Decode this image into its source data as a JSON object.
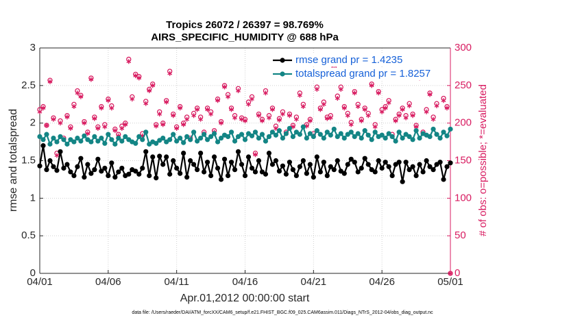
{
  "chart_data": {
    "type": "line",
    "title": "Tropics 26072 / 26397 = 98.769%",
    "subtitle": "AIRS_SPECIFIC_HUMIDITY @ 688 hPa",
    "xlabel": "Apr.01,2012 00:00:00 start",
    "ylabel": "rmse and totalspread",
    "y2label": "# of obs: o=possible; *=evaluated",
    "footnote": "data file: /Users/raeder/DAI/ATM_forcXX/CAM6_setup/f.e21.FHIST_BGC.f09_025.CAM6assim.011/Diags_NTrS_2012-04/obs_diag_output.nc",
    "legend": "northeast",
    "grid": true,
    "xlim": [
      0,
      30
    ],
    "xticks": [
      {
        "value": 0,
        "label": "04/01"
      },
      {
        "value": 5,
        "label": "04/06"
      },
      {
        "value": 10,
        "label": "04/11"
      },
      {
        "value": 15,
        "label": "04/16"
      },
      {
        "value": 20,
        "label": "04/21"
      },
      {
        "value": 25,
        "label": "04/26"
      },
      {
        "value": 30,
        "label": "05/01"
      }
    ],
    "ylim": [
      0,
      3
    ],
    "yticks": [
      0,
      0.5,
      1,
      1.5,
      2,
      2.5,
      3
    ],
    "y2lim": [
      0,
      300
    ],
    "y2ticks": [
      0,
      50,
      100,
      150,
      200,
      250,
      300
    ],
    "y2color": "#d81b60",
    "x": [
      0,
      0.25,
      0.5,
      0.75,
      1,
      1.25,
      1.5,
      1.75,
      2,
      2.25,
      2.5,
      2.75,
      3,
      3.25,
      3.5,
      3.75,
      4,
      4.25,
      4.5,
      4.75,
      5,
      5.25,
      5.5,
      5.75,
      6,
      6.25,
      6.5,
      6.75,
      7,
      7.25,
      7.5,
      7.75,
      8,
      8.25,
      8.5,
      8.75,
      9,
      9.25,
      9.5,
      9.75,
      10,
      10.25,
      10.5,
      10.75,
      11,
      11.25,
      11.5,
      11.75,
      12,
      12.25,
      12.5,
      12.75,
      13,
      13.25,
      13.5,
      13.75,
      14,
      14.25,
      14.5,
      14.75,
      15,
      15.25,
      15.5,
      15.75,
      16,
      16.25,
      16.5,
      16.75,
      17,
      17.25,
      17.5,
      17.75,
      18,
      18.25,
      18.5,
      18.75,
      19,
      19.25,
      19.5,
      19.75,
      20,
      20.25,
      20.5,
      20.75,
      21,
      21.25,
      21.5,
      21.75,
      22,
      22.25,
      22.5,
      22.75,
      23,
      23.25,
      23.5,
      23.75,
      24,
      24.25,
      24.5,
      24.75,
      25,
      25.25,
      25.5,
      25.75,
      26,
      26.25,
      26.5,
      26.75,
      27,
      27.25,
      27.5,
      27.75,
      28,
      28.25,
      28.5,
      28.75,
      29,
      29.25,
      29.5,
      29.75,
      30
    ],
    "series": [
      {
        "name": "rmse grand pr = 1.4235",
        "color": "#000000",
        "marker": "dot",
        "values": [
          1.43,
          1.7,
          1.38,
          1.5,
          1.42,
          1.37,
          1.62,
          1.4,
          1.45,
          1.35,
          1.3,
          1.42,
          1.53,
          1.28,
          1.45,
          1.33,
          1.38,
          1.52,
          1.36,
          1.4,
          1.3,
          1.47,
          1.28,
          1.35,
          1.4,
          1.3,
          1.32,
          1.38,
          1.36,
          1.32,
          1.4,
          1.62,
          1.3,
          1.55,
          1.27,
          1.56,
          1.45,
          1.55,
          1.32,
          1.5,
          1.4,
          1.33,
          1.6,
          1.28,
          1.5,
          1.45,
          1.38,
          1.6,
          1.35,
          1.48,
          1.3,
          1.55,
          1.4,
          1.25,
          1.52,
          1.3,
          1.48,
          1.38,
          1.62,
          1.45,
          1.3,
          1.55,
          1.4,
          1.35,
          1.5,
          1.35,
          1.32,
          1.6,
          1.45,
          1.5,
          1.36,
          1.43,
          1.32,
          1.48,
          1.38,
          1.3,
          1.42,
          1.5,
          1.33,
          1.45,
          1.28,
          1.55,
          1.35,
          1.48,
          1.3,
          1.42,
          1.38,
          1.5,
          1.36,
          1.33,
          1.45,
          1.52,
          1.48,
          1.35,
          1.4,
          1.53,
          1.45,
          1.38,
          1.35,
          1.5,
          1.4,
          1.48,
          1.42,
          1.3,
          1.45,
          1.48,
          1.22,
          1.48,
          1.38,
          1.42,
          1.3,
          1.45,
          1.35,
          1.5,
          1.42,
          1.38,
          1.45,
          1.48,
          1.25,
          1.42,
          1.47
        ]
      },
      {
        "name": "totalspread grand pr = 1.8257",
        "color": "#138585",
        "marker": "dot",
        "values": [
          1.82,
          1.78,
          1.85,
          1.72,
          1.8,
          1.75,
          1.82,
          1.78,
          1.72,
          1.78,
          1.75,
          1.8,
          1.76,
          1.83,
          1.78,
          1.75,
          1.82,
          1.76,
          1.8,
          1.73,
          1.85,
          1.78,
          1.72,
          1.8,
          1.76,
          1.82,
          1.78,
          1.75,
          1.73,
          1.82,
          1.78,
          1.88,
          1.72,
          1.75,
          1.73,
          1.77,
          1.8,
          1.75,
          1.78,
          1.85,
          1.76,
          1.8,
          1.74,
          1.82,
          1.78,
          1.88,
          1.76,
          1.8,
          1.85,
          1.78,
          1.82,
          1.86,
          1.75,
          1.8,
          1.84,
          1.82,
          1.88,
          1.76,
          1.82,
          1.85,
          1.78,
          1.86,
          1.83,
          1.88,
          1.8,
          1.85,
          1.76,
          1.82,
          1.88,
          1.84,
          1.9,
          1.8,
          1.86,
          1.93,
          1.82,
          1.88,
          1.85,
          1.95,
          1.8,
          1.86,
          1.82,
          1.9,
          1.85,
          1.8,
          1.88,
          1.84,
          1.92,
          1.82,
          1.86,
          1.8,
          1.85,
          1.88,
          1.82,
          1.86,
          1.8,
          1.9,
          1.84,
          1.78,
          1.88,
          1.82,
          1.84,
          1.8,
          1.86,
          1.82,
          1.76,
          1.88,
          1.8,
          1.85,
          1.82,
          1.78,
          1.9,
          1.8,
          1.86,
          1.84,
          1.82,
          1.92,
          1.85,
          1.8,
          1.88,
          1.83,
          1.92
        ]
      },
      {
        "axis": "y2",
        "color": "#d81b60",
        "marker": "circle",
        "values": [
          218,
          222,
          197,
          257,
          207,
          160,
          203,
          180,
          210,
          195,
          225,
          243,
          237,
          202,
          188,
          260,
          208,
          195,
          222,
          198,
          232,
          223,
          192,
          185,
          196,
          200,
          285,
          235,
          265,
          262,
          186,
          229,
          245,
          252,
          198,
          215,
          200,
          230,
          269,
          212,
          195,
          222,
          200,
          208,
          180,
          213,
          220,
          208,
          188,
          220,
          215,
          190,
          232,
          202,
          250,
          238,
          220,
          210,
          246,
          207,
          205,
          228,
          235,
          160,
          212,
          205,
          243,
          210,
          220,
          196,
          206,
          215,
          188,
          212,
          197,
          208,
          240,
          225,
          198,
          205,
          186,
          248,
          220,
          228,
          208,
          210,
          274,
          236,
          248,
          222,
          213,
          201,
          242,
          225,
          205,
          220,
          213,
          252,
          198,
          242,
          218,
          222,
          230,
          185,
          205,
          212,
          220,
          210,
          226,
          212,
          197,
          262,
          188,
          218,
          240,
          208,
          226,
          264,
          233,
          222,
          0
        ]
      },
      {
        "axis": "y2",
        "color": "#d81b60",
        "marker": "asterisk",
        "values": [
          215,
          220,
          197,
          255,
          205,
          157,
          200,
          178,
          208,
          193,
          222,
          240,
          235,
          200,
          186,
          258,
          206,
          193,
          220,
          195,
          230,
          220,
          190,
          183,
          193,
          198,
          282,
          232,
          263,
          260,
          183,
          226,
          243,
          250,
          196,
          212,
          198,
          228,
          266,
          210,
          193,
          220,
          198,
          205,
          178,
          210,
          218,
          205,
          186,
          218,
          212,
          188,
          230,
          200,
          248,
          235,
          218,
          207,
          243,
          205,
          203,
          225,
          232,
          158,
          210,
          203,
          240,
          207,
          218,
          193,
          204,
          212,
          186,
          210,
          195,
          205,
          237,
          222,
          196,
          203,
          183,
          245,
          218,
          225,
          206,
          207,
          272,
          233,
          245,
          220,
          210,
          198,
          240,
          222,
          203,
          218,
          210,
          250,
          195,
          240,
          215,
          220,
          227,
          182,
          203,
          210,
          218,
          207,
          223,
          210,
          195,
          260,
          186,
          215,
          238,
          205,
          223,
          262,
          230,
          220,
          0
        ]
      }
    ]
  }
}
